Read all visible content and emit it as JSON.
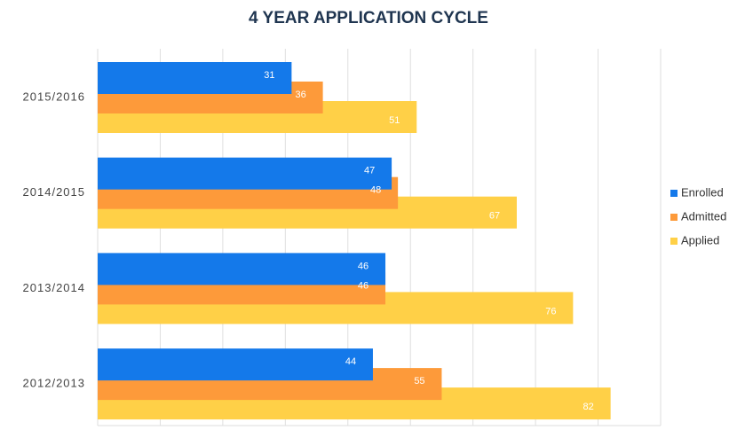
{
  "chart_data": {
    "type": "bar",
    "orientation": "horizontal",
    "title": "4 YEAR APPLICATION CYCLE",
    "categories": [
      "2015/2016",
      "2014/2015",
      "2013/2014",
      "2012/2013"
    ],
    "series": [
      {
        "name": "Enrolled",
        "color": "#1479ea",
        "values": [
          31,
          47,
          46,
          44
        ]
      },
      {
        "name": "Admitted",
        "color": "#fd9a3a",
        "values": [
          36,
          48,
          46,
          55
        ]
      },
      {
        "name": "Applied",
        "color": "#ffd047",
        "values": [
          51,
          67,
          76,
          82
        ]
      }
    ],
    "xlim": [
      0,
      90
    ],
    "xticks": [
      0,
      10,
      20,
      30,
      40,
      50,
      60,
      70,
      80,
      90
    ],
    "grid": true,
    "legend": "right"
  }
}
